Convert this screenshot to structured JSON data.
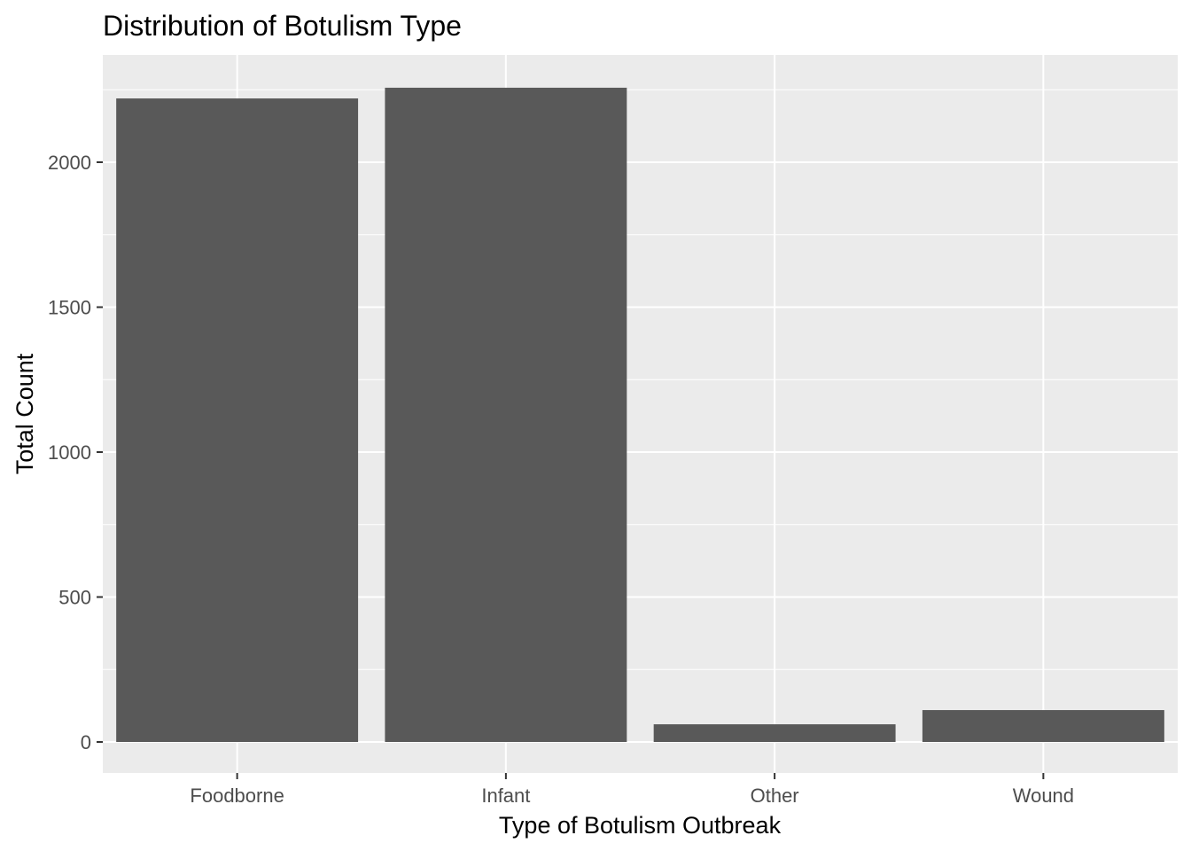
{
  "chart_data": {
    "type": "bar",
    "title": "Distribution of Botulism Type",
    "xlabel": "Type of Botulism Outbreak",
    "ylabel": "Total Count",
    "categories": [
      "Foodborne",
      "Infant",
      "Other",
      "Wound"
    ],
    "values": [
      2220,
      2257,
      61,
      110
    ],
    "ylim": [
      -107,
      2370
    ],
    "yticks": [
      0,
      500,
      1000,
      1500,
      2000
    ],
    "ytick_labels": [
      "0",
      "500",
      "1000",
      "1500",
      "2000"
    ],
    "grid": true,
    "legend": "none",
    "colors": {
      "bar": "#595959",
      "panel": "#EBEBEB",
      "grid": "#FFFFFF"
    }
  }
}
